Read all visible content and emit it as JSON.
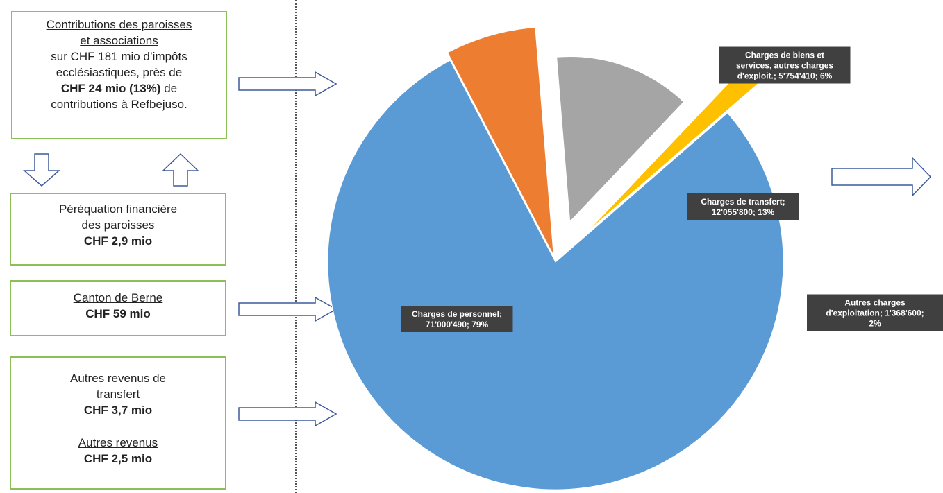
{
  "boxes": {
    "contributions": {
      "title_line1": "Contributions des paroisses",
      "title_line2": "et associations",
      "line3": "sur CHF 181 mio d’impôts",
      "line4": "ecclésiastiques, près de",
      "line5_bold": "CHF 24 mio (13%)",
      "line5_rest": " de",
      "line6": "contributions à Refbejuso."
    },
    "perequation": {
      "title_line1": "Péréquation financière",
      "title_line2": "des paroisses",
      "amount": "CHF 2,9 mio"
    },
    "canton": {
      "title": "Canton de Berne",
      "amount": "CHF 59 mio"
    },
    "autres": {
      "title1_line1": "Autres revenus de",
      "title1_line2": "transfert",
      "amount1": "CHF 3,7 mio",
      "title2": "Autres revenus",
      "amount2": "CHF 2,5 mio"
    }
  },
  "colors": {
    "box_border": "#8cbf55",
    "arrow": "#3d5a9c",
    "label_bg": "#404040"
  },
  "chart_data": {
    "type": "pie",
    "slices": [
      {
        "name": "Charges de personnel",
        "value": 71000490,
        "percent": 79,
        "color": "#5b9bd5",
        "label_lines": [
          "Charges de personnel;",
          "71'000'490; 79%"
        ]
      },
      {
        "name": "Charges de biens et services, autres charges d'exploit.",
        "value": 5754410,
        "percent": 6,
        "color": "#ed7d31",
        "label_lines": [
          "Charges de biens et",
          "services, autres charges",
          "d'exploit.; 5'754'410; 6%"
        ]
      },
      {
        "name": "Charges de transfert",
        "value": 12055800,
        "percent": 13,
        "color": "#a5a5a5",
        "label_lines": [
          "Charges de transfert;",
          "12'055'800; 13%"
        ]
      },
      {
        "name": "Autres charges d'exploitation",
        "value": 1368600,
        "percent": 2,
        "color": "#ffc000",
        "label_lines": [
          "Autres charges",
          "d'exploitation; 1'368'600;",
          "2%"
        ]
      }
    ]
  }
}
